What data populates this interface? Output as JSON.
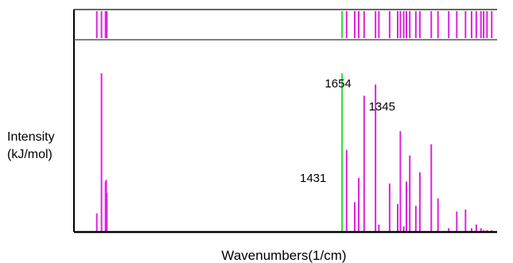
{
  "chart_data": {
    "type": "bar",
    "title": "",
    "xlabel": "Wavenumbers(1/cm)",
    "ylabel": [
      "Intensity",
      "(kJ/mol)"
    ],
    "x_direction": "decreasing",
    "grid": false,
    "legend": "none",
    "annotations": [
      {
        "text": "1654",
        "x": 1654
      },
      {
        "text": "1345",
        "x": 1345
      },
      {
        "text": "1431",
        "x": 1431
      }
    ],
    "series": [
      {
        "color": "#dd22dd",
        "x": [
          3480,
          3445,
          3415,
          3410,
          3405,
          1620,
          1560,
          1530,
          1490,
          1405,
          1380,
          1300,
          1240,
          1220,
          1195,
          1175,
          1150,
          1105,
          1075,
          990,
          940,
          860,
          800,
          735,
          690,
          655,
          620,
          600,
          575,
          540
        ],
        "values": [
          10,
          85,
          27,
          28,
          21,
          44,
          16,
          29,
          73,
          79,
          4,
          26,
          15,
          54,
          3,
          27,
          41,
          14,
          32,
          47,
          18,
          2,
          11,
          12,
          2,
          4,
          2,
          1,
          1,
          1
        ]
      },
      {
        "color": "#33dd33",
        "x": [
          1654
        ],
        "values": [
          85
        ]
      }
    ],
    "xlim": [
      3650,
      500
    ],
    "ylim": [
      0,
      100
    ],
    "colors": {
      "axis": "#000000",
      "bars": "#dd22dd",
      "highlight": "#33dd33"
    }
  }
}
